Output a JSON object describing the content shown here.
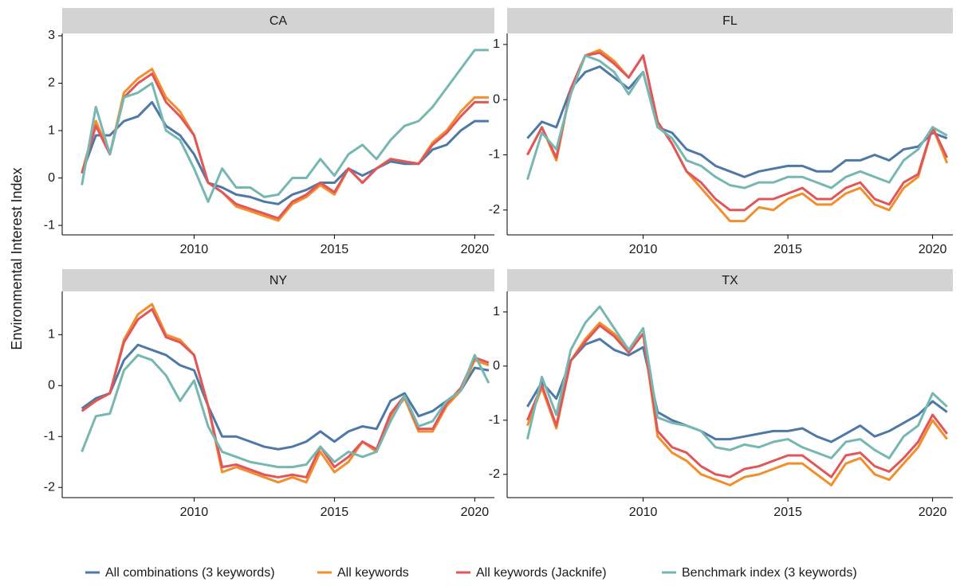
{
  "chart_data": [
    {
      "type": "line",
      "title": "CA",
      "ylabel": "Environmental Interest Index",
      "x": [
        2006,
        2006.5,
        2007,
        2007.5,
        2008,
        2008.5,
        2009,
        2009.5,
        2010,
        2010.5,
        2011,
        2011.5,
        2012,
        2012.5,
        2013,
        2013.5,
        2014,
        2014.5,
        2015,
        2015.5,
        2016,
        2016.5,
        2017,
        2017.5,
        2018,
        2018.5,
        2019,
        2019.5,
        2020,
        2020.5
      ],
      "xlim": [
        2005.3,
        2020.7
      ],
      "xticks": [
        2010,
        2015,
        2020
      ],
      "ylim": [
        -1.2,
        3.05
      ],
      "yticks": [
        -1,
        0,
        1,
        2,
        3
      ],
      "series": [
        {
          "name": "All combinations (3 keywords)",
          "color": "#4e79a7",
          "values": [
            0.1,
            0.9,
            0.9,
            1.2,
            1.3,
            1.6,
            1.1,
            0.9,
            0.5,
            -0.1,
            -0.2,
            -0.35,
            -0.4,
            -0.5,
            -0.55,
            -0.35,
            -0.25,
            -0.1,
            -0.1,
            0.2,
            0.05,
            0.2,
            0.35,
            0.3,
            0.3,
            0.6,
            0.7,
            1.0,
            1.2,
            1.2
          ]
        },
        {
          "name": "All keywords",
          "color": "#f28e2b",
          "values": [
            0.1,
            1.2,
            0.5,
            1.8,
            2.1,
            2.3,
            1.7,
            1.4,
            0.9,
            -0.1,
            -0.3,
            -0.6,
            -0.7,
            -0.8,
            -0.9,
            -0.55,
            -0.4,
            -0.15,
            -0.35,
            0.2,
            -0.1,
            0.2,
            0.4,
            0.35,
            0.3,
            0.75,
            1.0,
            1.4,
            1.7,
            1.7
          ]
        },
        {
          "name": "All keywords (Jacknife)",
          "color": "#e15759",
          "values": [
            0.1,
            1.1,
            0.5,
            1.7,
            2.0,
            2.2,
            1.6,
            1.3,
            0.9,
            -0.1,
            -0.3,
            -0.55,
            -0.65,
            -0.75,
            -0.85,
            -0.5,
            -0.35,
            -0.1,
            -0.3,
            0.2,
            -0.1,
            0.2,
            0.4,
            0.35,
            0.3,
            0.7,
            0.95,
            1.3,
            1.6,
            1.6
          ]
        },
        {
          "name": "Benchmark index (3 keywords)",
          "color": "#76b7b2",
          "values": [
            -0.15,
            1.5,
            0.5,
            1.7,
            1.8,
            2.0,
            1.0,
            0.8,
            0.2,
            -0.5,
            0.2,
            -0.2,
            -0.2,
            -0.4,
            -0.35,
            0.0,
            0.0,
            0.4,
            0.05,
            0.5,
            0.7,
            0.4,
            0.8,
            1.1,
            1.2,
            1.5,
            1.9,
            2.3,
            2.7,
            2.7
          ]
        }
      ]
    },
    {
      "type": "line",
      "title": "FL",
      "x": [
        2006,
        2006.5,
        2007,
        2007.5,
        2008,
        2008.5,
        2009,
        2009.5,
        2010,
        2010.5,
        2011,
        2011.5,
        2012,
        2012.5,
        2013,
        2013.5,
        2014,
        2014.5,
        2015,
        2015.5,
        2016,
        2016.5,
        2017,
        2017.5,
        2018,
        2018.5,
        2019,
        2019.5,
        2020,
        2020.5
      ],
      "xlim": [
        2005.3,
        2020.7
      ],
      "xticks": [
        2010,
        2015,
        2020
      ],
      "ylim": [
        -2.45,
        1.2
      ],
      "yticks": [
        -2,
        -1,
        0,
        1
      ],
      "series": [
        {
          "color": "#4e79a7",
          "values": [
            -0.7,
            -0.4,
            -0.5,
            0.2,
            0.5,
            0.6,
            0.4,
            0.2,
            0.5,
            -0.5,
            -0.6,
            -0.9,
            -1.0,
            -1.2,
            -1.3,
            -1.4,
            -1.3,
            -1.25,
            -1.2,
            -1.2,
            -1.3,
            -1.3,
            -1.1,
            -1.1,
            -1.0,
            -1.1,
            -0.9,
            -0.85,
            -0.6,
            -0.7
          ]
        },
        {
          "color": "#f28e2b",
          "values": [
            -1.0,
            -0.5,
            -1.1,
            0.2,
            0.8,
            0.9,
            0.7,
            0.4,
            0.8,
            -0.4,
            -0.8,
            -1.3,
            -1.6,
            -1.9,
            -2.2,
            -2.2,
            -1.95,
            -2.0,
            -1.8,
            -1.7,
            -1.9,
            -1.9,
            -1.7,
            -1.6,
            -1.9,
            -2.0,
            -1.6,
            -1.4,
            -0.5,
            -1.15
          ]
        },
        {
          "color": "#e15759",
          "values": [
            -1.0,
            -0.5,
            -1.05,
            0.2,
            0.8,
            0.85,
            0.65,
            0.4,
            0.8,
            -0.4,
            -0.8,
            -1.3,
            -1.5,
            -1.8,
            -2.0,
            -2.0,
            -1.8,
            -1.8,
            -1.7,
            -1.6,
            -1.8,
            -1.8,
            -1.6,
            -1.5,
            -1.8,
            -1.9,
            -1.5,
            -1.35,
            -0.5,
            -1.05
          ]
        },
        {
          "color": "#76b7b2",
          "values": [
            -1.45,
            -0.6,
            -0.9,
            0.1,
            0.8,
            0.7,
            0.5,
            0.1,
            0.5,
            -0.5,
            -0.7,
            -1.1,
            -1.2,
            -1.4,
            -1.55,
            -1.6,
            -1.5,
            -1.5,
            -1.4,
            -1.4,
            -1.5,
            -1.6,
            -1.4,
            -1.3,
            -1.4,
            -1.5,
            -1.1,
            -0.9,
            -0.5,
            -0.65
          ]
        }
      ]
    },
    {
      "type": "line",
      "title": "NY",
      "x": [
        2006,
        2006.5,
        2007,
        2007.5,
        2008,
        2008.5,
        2009,
        2009.5,
        2010,
        2010.5,
        2011,
        2011.5,
        2012,
        2012.5,
        2013,
        2013.5,
        2014,
        2014.5,
        2015,
        2015.5,
        2016,
        2016.5,
        2017,
        2017.5,
        2018,
        2018.5,
        2019,
        2019.5,
        2020,
        2020.5
      ],
      "xlim": [
        2005.3,
        2020.7
      ],
      "xticks": [
        2010,
        2015,
        2020
      ],
      "ylim": [
        -2.2,
        1.85
      ],
      "yticks": [
        -2,
        -1,
        0,
        1
      ],
      "series": [
        {
          "color": "#4e79a7",
          "values": [
            -0.45,
            -0.25,
            -0.15,
            0.5,
            0.8,
            0.7,
            0.6,
            0.4,
            0.3,
            -0.4,
            -1.0,
            -1.0,
            -1.1,
            -1.2,
            -1.25,
            -1.2,
            -1.1,
            -0.9,
            -1.1,
            -0.9,
            -0.8,
            -0.85,
            -0.3,
            -0.15,
            -0.6,
            -0.5,
            -0.3,
            -0.1,
            0.35,
            0.3
          ]
        },
        {
          "color": "#f28e2b",
          "values": [
            -0.5,
            -0.3,
            -0.15,
            0.9,
            1.4,
            1.6,
            1.0,
            0.9,
            0.6,
            -0.4,
            -1.7,
            -1.6,
            -1.7,
            -1.8,
            -1.9,
            -1.8,
            -1.9,
            -1.3,
            -1.7,
            -1.5,
            -1.1,
            -1.3,
            -0.6,
            -0.25,
            -0.9,
            -0.9,
            -0.4,
            -0.1,
            0.5,
            0.4
          ]
        },
        {
          "color": "#e15759",
          "values": [
            -0.5,
            -0.3,
            -0.15,
            0.85,
            1.3,
            1.5,
            0.95,
            0.85,
            0.6,
            -0.4,
            -1.6,
            -1.55,
            -1.65,
            -1.75,
            -1.8,
            -1.75,
            -1.8,
            -1.2,
            -1.6,
            -1.4,
            -1.1,
            -1.25,
            -0.55,
            -0.2,
            -0.85,
            -0.85,
            -0.35,
            -0.05,
            0.55,
            0.45
          ]
        },
        {
          "color": "#76b7b2",
          "values": [
            -1.3,
            -0.6,
            -0.55,
            0.3,
            0.6,
            0.5,
            0.2,
            -0.3,
            0.1,
            -0.8,
            -1.3,
            -1.4,
            -1.5,
            -1.55,
            -1.6,
            -1.6,
            -1.55,
            -1.2,
            -1.5,
            -1.3,
            -1.4,
            -1.3,
            -0.7,
            -0.2,
            -0.8,
            -0.7,
            -0.3,
            -0.1,
            0.6,
            0.05
          ]
        }
      ]
    },
    {
      "type": "line",
      "title": "TX",
      "x": [
        2006,
        2006.5,
        2007,
        2007.5,
        2008,
        2008.5,
        2009,
        2009.5,
        2010,
        2010.5,
        2011,
        2011.5,
        2012,
        2012.5,
        2013,
        2013.5,
        2014,
        2014.5,
        2015,
        2015.5,
        2016,
        2016.5,
        2017,
        2017.5,
        2018,
        2018.5,
        2019,
        2019.5,
        2020,
        2020.5
      ],
      "xlim": [
        2005.3,
        2020.7
      ],
      "xticks": [
        2010,
        2015,
        2020
      ],
      "ylim": [
        -2.43,
        1.38
      ],
      "yticks": [
        -2,
        -1,
        0,
        1
      ],
      "series": [
        {
          "color": "#4e79a7",
          "values": [
            -0.75,
            -0.3,
            -0.6,
            0.1,
            0.4,
            0.5,
            0.3,
            0.2,
            0.35,
            -0.85,
            -1.0,
            -1.1,
            -1.2,
            -1.35,
            -1.35,
            -1.3,
            -1.25,
            -1.2,
            -1.2,
            -1.15,
            -1.3,
            -1.4,
            -1.25,
            -1.1,
            -1.3,
            -1.2,
            -1.05,
            -0.9,
            -0.65,
            -0.85
          ]
        },
        {
          "color": "#f28e2b",
          "values": [
            -1.1,
            -0.4,
            -1.15,
            0.1,
            0.5,
            0.8,
            0.6,
            0.3,
            0.6,
            -1.3,
            -1.6,
            -1.75,
            -2.0,
            -2.1,
            -2.2,
            -2.05,
            -2.0,
            -1.9,
            -1.8,
            -1.8,
            -2.0,
            -2.2,
            -1.8,
            -1.7,
            -2.0,
            -2.1,
            -1.8,
            -1.5,
            -1.0,
            -1.35
          ]
        },
        {
          "color": "#e15759",
          "values": [
            -1.0,
            -0.35,
            -1.1,
            0.1,
            0.45,
            0.75,
            0.55,
            0.25,
            0.6,
            -1.2,
            -1.5,
            -1.6,
            -1.85,
            -2.0,
            -2.05,
            -1.9,
            -1.85,
            -1.75,
            -1.65,
            -1.65,
            -1.85,
            -2.05,
            -1.65,
            -1.6,
            -1.85,
            -1.95,
            -1.7,
            -1.4,
            -0.9,
            -1.25
          ]
        },
        {
          "color": "#76b7b2",
          "values": [
            -1.35,
            -0.2,
            -0.9,
            0.3,
            0.8,
            1.1,
            0.7,
            0.3,
            0.7,
            -0.95,
            -1.05,
            -1.1,
            -1.2,
            -1.5,
            -1.55,
            -1.45,
            -1.5,
            -1.4,
            -1.35,
            -1.5,
            -1.6,
            -1.7,
            -1.4,
            -1.35,
            -1.55,
            -1.7,
            -1.3,
            -1.1,
            -0.5,
            -0.75
          ]
        }
      ]
    }
  ]
}
